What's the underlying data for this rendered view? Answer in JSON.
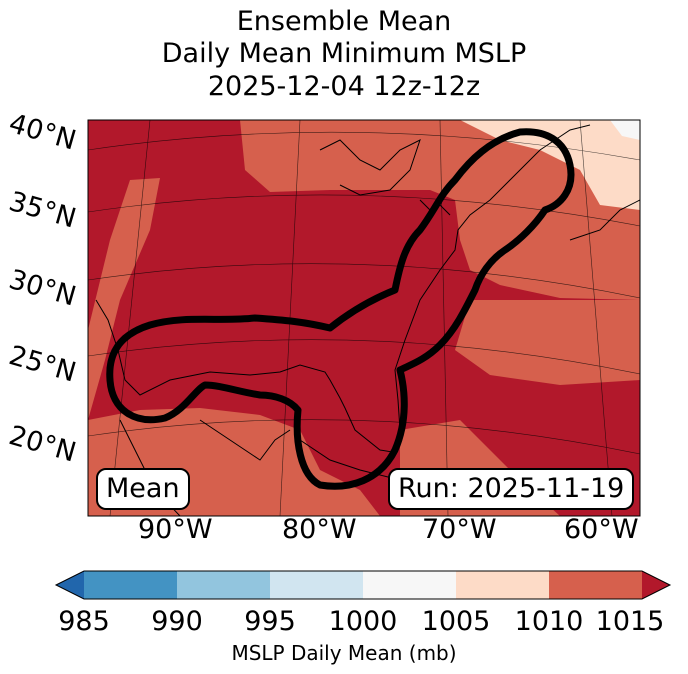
{
  "title": {
    "line1": "Ensemble Mean",
    "line2": "Daily Mean Minimum MSLP",
    "line3": "2025-12-04 12z-12z"
  },
  "lat_labels": [
    "40°N",
    "35°N",
    "30°N",
    "25°N",
    "20°N"
  ],
  "lon_labels": [
    "90°W",
    "80°W",
    "70°W",
    "60°W"
  ],
  "boxes": {
    "left": "Mean",
    "right": "Run: 2025-11-19"
  },
  "colorbar": {
    "ticks": [
      "985",
      "990",
      "995",
      "1000",
      "1005",
      "1010",
      "1015"
    ],
    "colors": [
      "#2166ac",
      "#4393c3",
      "#92c5de",
      "#d1e5f0",
      "#f7f7f7",
      "#fddbc7",
      "#d6604d",
      "#b2182b"
    ],
    "label": "MSLP Daily Mean (mb)"
  },
  "map_colors": {
    "darkred": "#b2182b",
    "red": "#d6604d",
    "peach": "#fddbc7",
    "white": "#f7f7f7"
  }
}
